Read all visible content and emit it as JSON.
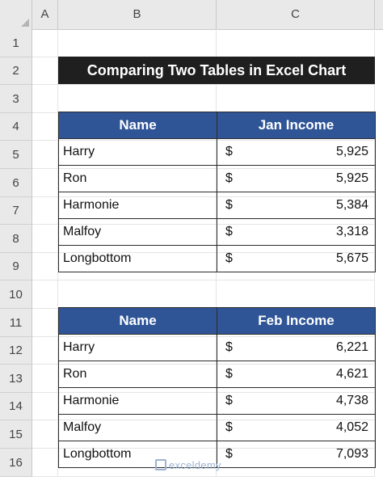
{
  "columns": [
    "A",
    "B",
    "C"
  ],
  "rows": [
    "1",
    "2",
    "3",
    "4",
    "5",
    "6",
    "7",
    "8",
    "9",
    "10",
    "11",
    "12",
    "13",
    "14",
    "15",
    "16"
  ],
  "title": "Comparing Two Tables in Excel Chart",
  "jan_table": {
    "headers": [
      "Name",
      "Jan Income"
    ],
    "currency": "$",
    "rows": [
      {
        "name": "Harry",
        "value": "5,925"
      },
      {
        "name": "Ron",
        "value": "5,925"
      },
      {
        "name": "Harmonie",
        "value": "5,384"
      },
      {
        "name": "Malfoy",
        "value": "3,318"
      },
      {
        "name": "Longbottom",
        "value": "5,675"
      }
    ]
  },
  "feb_table": {
    "headers": [
      "Name",
      "Feb Income"
    ],
    "currency": "$",
    "rows": [
      {
        "name": "Harry",
        "value": "6,221"
      },
      {
        "name": "Ron",
        "value": "4,621"
      },
      {
        "name": "Harmonie",
        "value": "4,738"
      },
      {
        "name": "Malfoy",
        "value": "4,052"
      },
      {
        "name": "Longbottom",
        "value": "7,093"
      }
    ]
  },
  "watermark": "exceldemy",
  "colors": {
    "header_blue": "#2f5597",
    "title_bg": "#1f1f1f"
  }
}
